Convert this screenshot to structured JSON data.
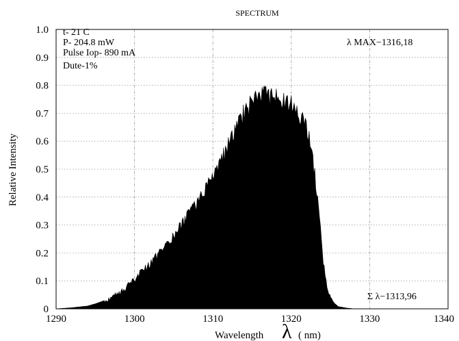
{
  "chart_data": {
    "type": "area",
    "title": "SPECTRUM",
    "xlabel_prefix": "Wavelength",
    "xlabel_symbol": "λ",
    "xlabel_unit": "( nm)",
    "ylabel": "Relative Intensity",
    "xlim": [
      1290,
      1340
    ],
    "ylim": [
      0,
      1.0
    ],
    "x_ticks": [
      1290,
      1300,
      1310,
      1320,
      1330,
      1340
    ],
    "y_ticks": [
      "0",
      "0.1",
      "0.2",
      "0.3",
      "0.4",
      "0.5",
      "0.6",
      "0.7",
      "0.8",
      "0.9",
      "1.0"
    ],
    "grid": true,
    "fill_color": "#000000",
    "annotations": {
      "conditions": [
        "t- 21 C",
        "P- 204.8 mW",
        "Pulse Iop- 890 mA",
        "Dute-1%"
      ],
      "peak": "λ MAX−1316,18",
      "centroid": "Σ λ−1313,96"
    },
    "x": [
      1290,
      1292,
      1294,
      1295,
      1296,
      1297,
      1298,
      1299,
      1300,
      1301,
      1302,
      1303,
      1304,
      1305,
      1306,
      1307,
      1308,
      1309,
      1310,
      1311,
      1312,
      1313,
      1314,
      1315,
      1316,
      1317,
      1318,
      1319,
      1320,
      1321,
      1322,
      1322.5,
      1323,
      1323.5,
      1324,
      1324.5,
      1325,
      1325.5,
      1326,
      1327,
      1328
    ],
    "y": [
      0.0,
      0.004,
      0.01,
      0.018,
      0.028,
      0.042,
      0.06,
      0.085,
      0.11,
      0.14,
      0.17,
      0.2,
      0.235,
      0.27,
      0.31,
      0.35,
      0.39,
      0.44,
      0.49,
      0.54,
      0.6,
      0.66,
      0.72,
      0.76,
      0.775,
      0.78,
      0.77,
      0.76,
      0.75,
      0.71,
      0.66,
      0.6,
      0.5,
      0.36,
      0.2,
      0.09,
      0.04,
      0.02,
      0.008,
      0.003,
      0.0
    ]
  }
}
